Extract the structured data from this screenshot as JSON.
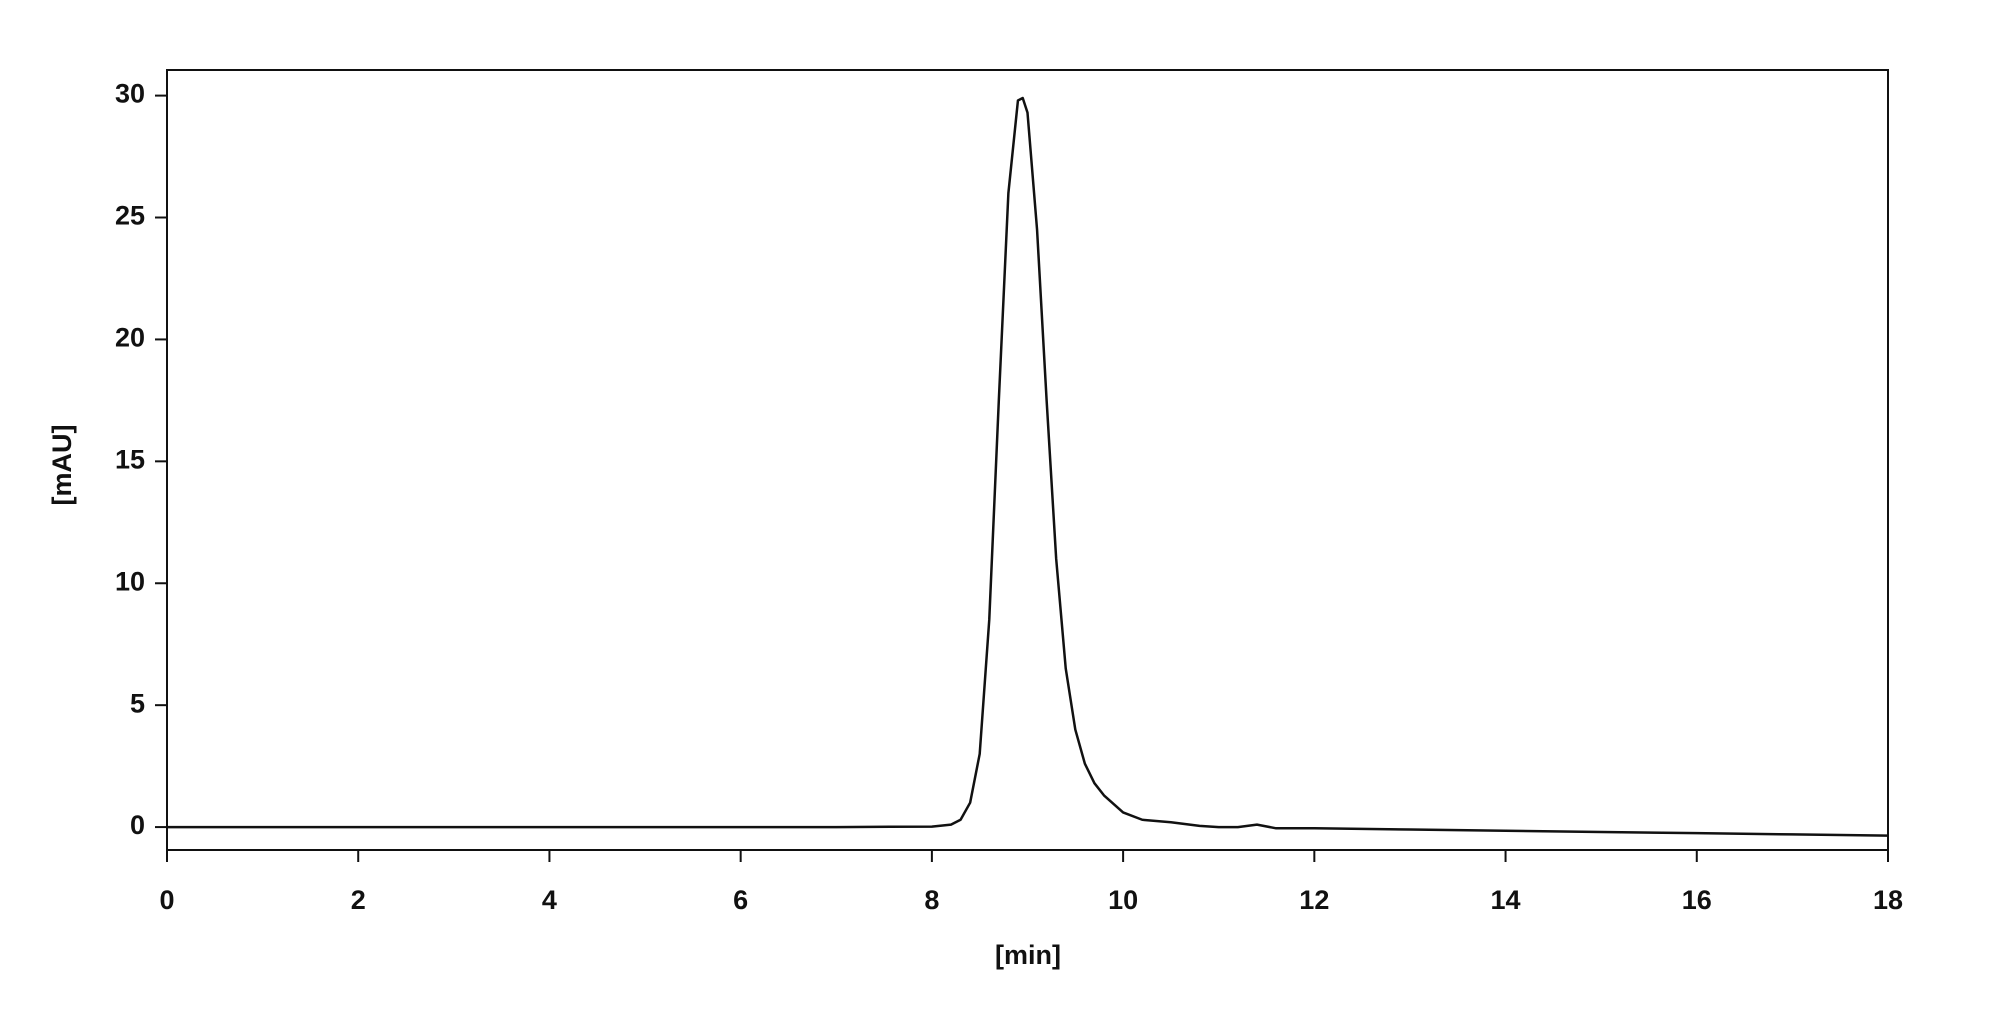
{
  "chart_data": {
    "type": "line",
    "x_label": "[min]",
    "y_label": "[mAU]",
    "xlim": [
      0,
      18
    ],
    "ylim": [
      -0.94,
      31.05
    ],
    "xticks": [
      0,
      2,
      4,
      6,
      8,
      10,
      12,
      14,
      16,
      18
    ],
    "yticks": [
      0,
      5,
      10,
      15,
      20,
      25,
      30
    ],
    "color": "#111111",
    "x": [
      0,
      2,
      4,
      6,
      7,
      8,
      8.2,
      8.3,
      8.4,
      8.5,
      8.6,
      8.7,
      8.8,
      8.9,
      8.95,
      9.0,
      9.1,
      9.2,
      9.3,
      9.4,
      9.5,
      9.6,
      9.7,
      9.8,
      10,
      10.2,
      10.5,
      10.8,
      11,
      11.2,
      11.4,
      11.6,
      12,
      13,
      14,
      15,
      16,
      17,
      18
    ],
    "values": [
      0,
      0,
      0,
      0,
      0,
      0.02,
      0.1,
      0.3,
      1.0,
      3.0,
      8.5,
      17.5,
      26.0,
      29.8,
      29.9,
      29.3,
      24.5,
      17.5,
      11.0,
      6.5,
      4.0,
      2.6,
      1.8,
      1.3,
      0.6,
      0.3,
      0.2,
      0.05,
      0.0,
      0.0,
      0.1,
      -0.05,
      -0.05,
      -0.1,
      -0.15,
      -0.2,
      -0.25,
      -0.3,
      -0.35
    ]
  }
}
